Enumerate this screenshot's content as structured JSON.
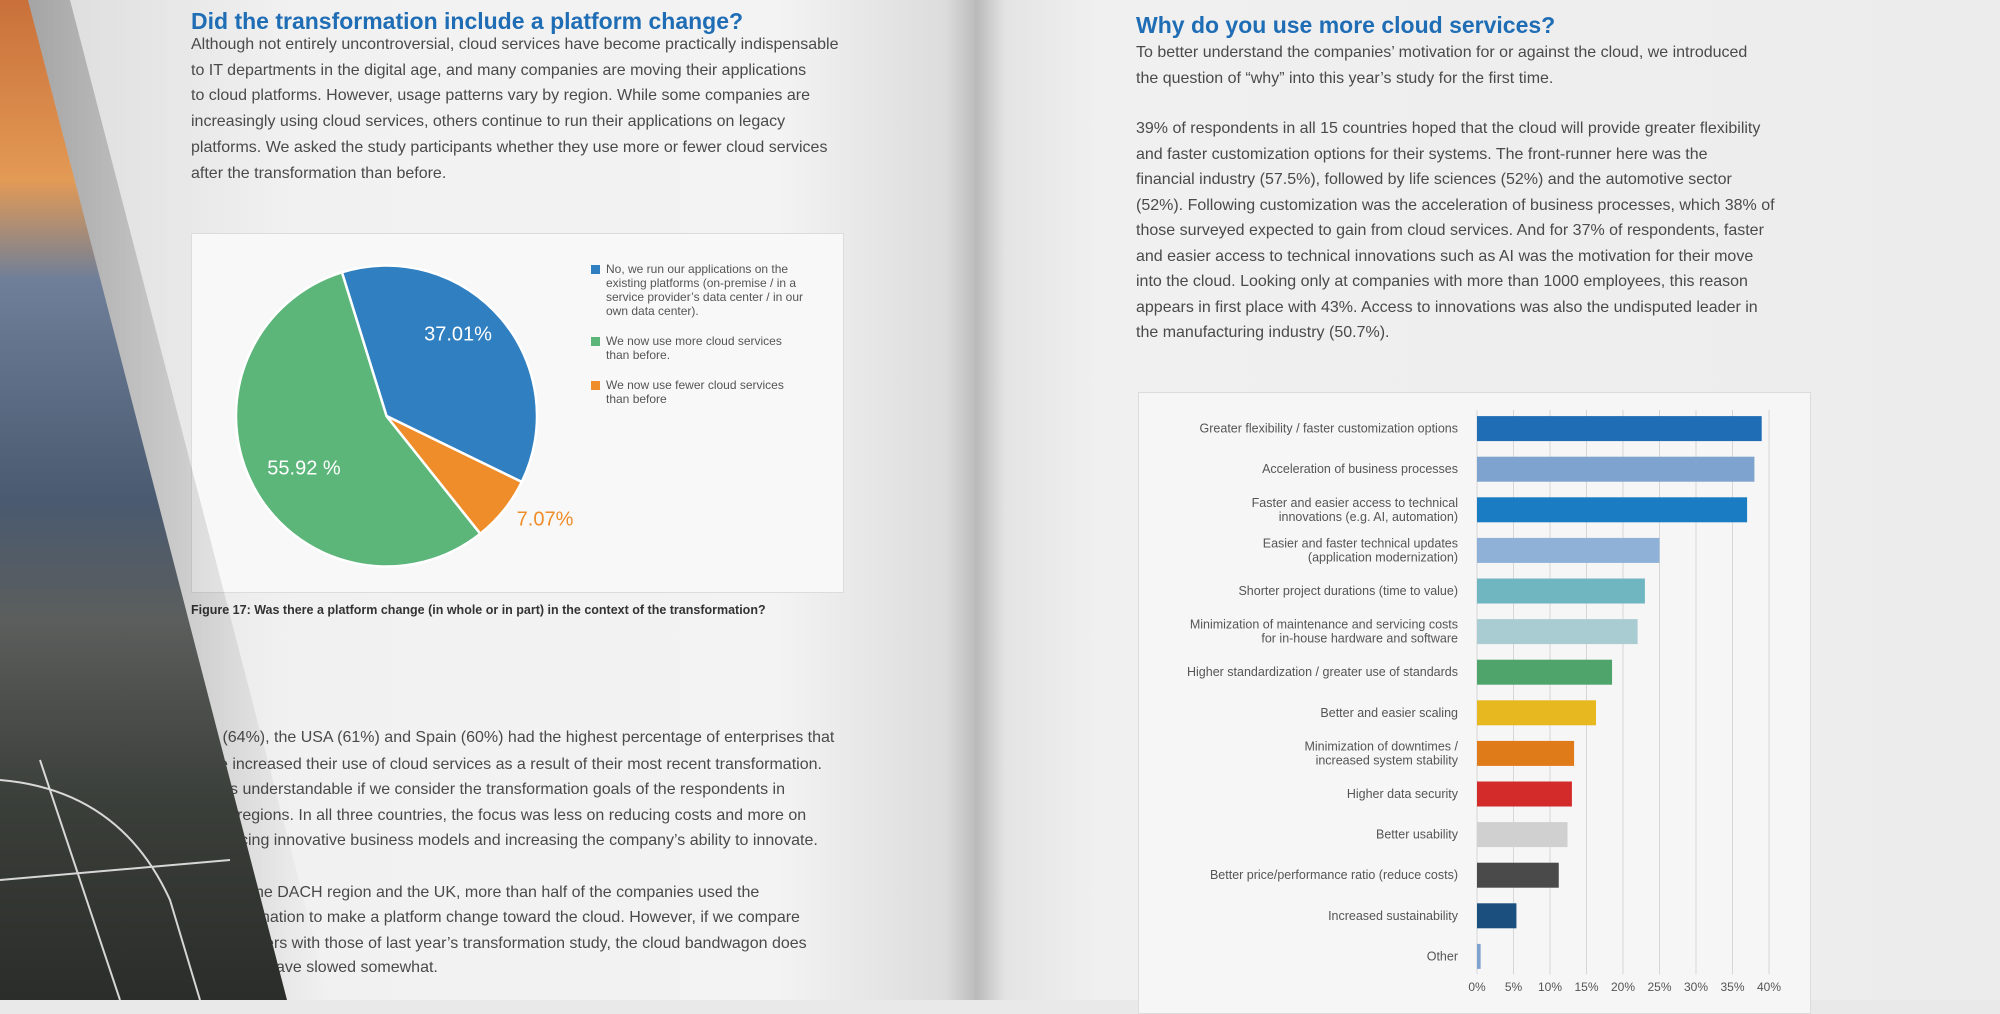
{
  "left_page": {
    "heading": "Did the transformation include a platform change?",
    "paragraph": [
      "Although not entirely uncontroversial, cloud services have become practically indispensable",
      "to IT departments in the digital age, and many companies are moving their applications",
      "to cloud platforms. However, usage patterns vary by region. While some companies are",
      "increasingly using cloud services, others continue to run their applications on legacy",
      "platforms. We asked the study participants whether they use more or fewer cloud services",
      "after the transformation than before."
    ],
    "figure_caption": "Figure 17: Was there a platform change (in whole or in part) in the context of the transformation?",
    "continued_text": [
      "y (64%), the USA (61%) and Spain (60%) had the highest percentage of enterprises that",
      "e increased their use of cloud services as a result of their most recent transformation.",
      "s understandable if we consider the transformation goals of the respondents in",
      "regions. In all three countries, the focus was less on reducing costs and more on",
      "cing innovative business models and increasing the company’s ability to innovate.",
      "he DACH region and the UK, more than half of the companies used the",
      "nation to make a platform change toward the cloud. However, if we compare",
      "ers with those of last year’s transformation study, the cloud bandwagon does",
      "ave slowed somewhat."
    ]
  },
  "right_page": {
    "heading": "Why do you use more cloud services?",
    "intro": [
      "To better understand the companies’ motivation for or against the cloud, we introduced",
      "the question of “why” into this year’s study for the first time."
    ],
    "paragraph": [
      "39% of respondents in all 15 countries hoped that the cloud will provide greater flexibility",
      "and faster customization options for their systems. The front-runner here was the",
      "financial industry (57.5%), followed by life sciences (52%) and the automotive sector",
      "(52%). Following customization was the acceleration of business processes, which 38% of",
      "those surveyed expected to gain from cloud services. And for 37% of respondents, faster",
      "and easier access to technical innovations such as AI was the motivation for their move",
      "into the cloud. Looking only at companies with more than 1000 employees, this reason",
      "appears in first place with 43%. Access to innovations was also the undisputed leader in",
      "the manufacturing industry (50.7%)."
    ]
  },
  "chart_data": [
    {
      "type": "pie",
      "categories": [
        "No, we run our applications on the existing platforms (on-premise / in a service provider’s data center / in our own data center).",
        "We now use more cloud services than before.",
        "We now use fewer cloud services than before"
      ],
      "values": [
        37.01,
        55.92,
        7.07
      ],
      "value_labels": [
        "37.01%",
        "55.92 %",
        "7.07%"
      ],
      "colors": [
        "#2f7fc1",
        "#5cb67a",
        "#ee8d2a"
      ]
    },
    {
      "type": "bar",
      "categories": [
        "Greater flexibility / faster customization options",
        "Acceleration of business processes",
        "Faster and easier access to technical\ninnovations (e.g. AI, automation)",
        "Easier and faster technical updates\n(application modernization)",
        "Shorter project durations (time to value)",
        "Minimization of maintenance and servicing costs\nfor in-house hardware and software",
        "Higher standardization / greater use of standards",
        "Better and easier scaling",
        "Minimization of downtimes /\nincreased system stability",
        "Higher data security",
        "Better usability",
        "Better price/performance ratio (reduce costs)",
        "Increased sustainability",
        "Other"
      ],
      "values": [
        39,
        38,
        37,
        25,
        23,
        22,
        18.5,
        16.3,
        13.3,
        13,
        12.4,
        11.2,
        5.4,
        0.5
      ],
      "colors": [
        "#1f6db5",
        "#7fa3cf",
        "#1a7cc3",
        "#8fb1d8",
        "#6fb6c1",
        "#a9ccd3",
        "#4ea46a",
        "#e8b820",
        "#e07b1a",
        "#d32a2a",
        "#d0d0d0",
        "#4a4a4a",
        "#1a4f7e",
        "#7fa3cf"
      ],
      "xlim": [
        0,
        40
      ],
      "xticks": [
        {
          "value": 0,
          "label": "0%"
        },
        {
          "value": 5,
          "label": "5%"
        },
        {
          "value": 10,
          "label": "10%"
        },
        {
          "value": 15,
          "label": "15%"
        },
        {
          "value": 20,
          "label": "20%"
        },
        {
          "value": 25,
          "label": "25%"
        },
        {
          "value": 30,
          "label": "30%"
        },
        {
          "value": 35,
          "label": "35%"
        },
        {
          "value": 40,
          "label": "40%"
        }
      ],
      "grid": true
    }
  ]
}
